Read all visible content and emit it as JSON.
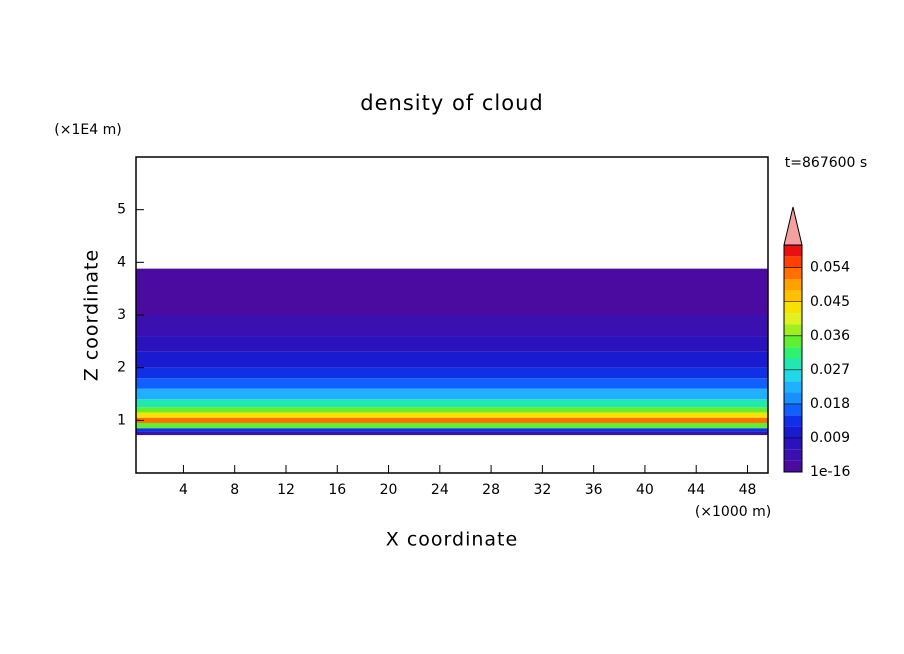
{
  "chart_data": {
    "type": "contour",
    "title": "density of cloud",
    "x_label": "X coordinate",
    "y_label": "Z coordinate",
    "x_unit": "(×1000 m)",
    "y_unit": "(×1E4 m)",
    "annotation": "t=867600 s",
    "xlim": [
      0.3,
      49.6
    ],
    "xticks": [
      4,
      8,
      12,
      16,
      20,
      24,
      28,
      32,
      36,
      40,
      44,
      48
    ],
    "ylim": [
      0,
      6
    ],
    "yticks": [
      1,
      2,
      3,
      4,
      5
    ],
    "z_edges": [
      0.72,
      0.78,
      0.85,
      0.95,
      1.05,
      1.15,
      1.25,
      1.4,
      1.6,
      1.8,
      2.0,
      2.3,
      2.6,
      3.0,
      3.88
    ],
    "values": [
      0.004,
      0.012,
      0.033,
      0.052,
      0.042,
      0.033,
      0.028,
      0.022,
      0.017,
      0.013,
      0.009,
      0.006,
      0.003,
      0.001
    ],
    "clim": [
      0,
      0.06
    ],
    "cticks": [
      1e-16,
      0.009,
      0.018,
      0.027,
      0.036,
      0.045,
      0.054
    ],
    "colormap": [
      "#4b0aa0",
      "#3a10b0",
      "#2a12bc",
      "#1a1ad0",
      "#1030e8",
      "#1060ff",
      "#1890ff",
      "#20b0ff",
      "#20d8e8",
      "#20e8b0",
      "#30f070",
      "#60f030",
      "#a0f020",
      "#e0f020",
      "#f8e000",
      "#ffc000",
      "#ffa000",
      "#ff7000",
      "#ff4000",
      "#e81010"
    ],
    "extend_color": "#f4a0a0"
  }
}
